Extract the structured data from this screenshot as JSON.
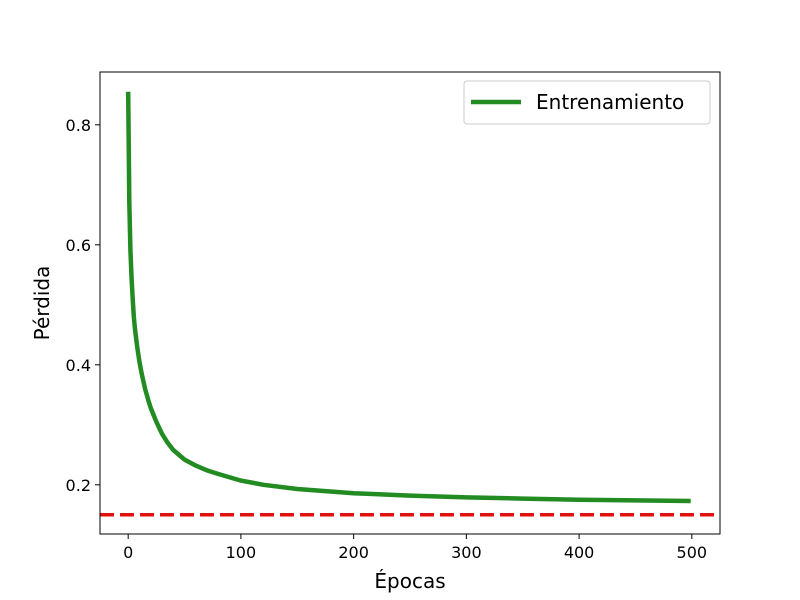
{
  "chart_data": {
    "type": "line",
    "title": "",
    "xlabel": "Épocas",
    "ylabel": "Pérdida",
    "xlim": [
      -25,
      525
    ],
    "ylim": [
      0.118,
      0.888
    ],
    "xticks": [
      0,
      100,
      200,
      300,
      400,
      500
    ],
    "xtick_labels": [
      "0",
      "100",
      "200",
      "300",
      "400",
      "500"
    ],
    "yticks": [
      0.2,
      0.4,
      0.6,
      0.8
    ],
    "ytick_labels": [
      "0.2",
      "0.4",
      "0.6",
      "0.8"
    ],
    "grid": false,
    "legend": {
      "position": "top-right"
    },
    "series": [
      {
        "name": "Entrenamiento",
        "color": "#228b22",
        "style": "solid",
        "x": [
          0,
          1,
          2,
          3,
          4,
          5,
          6,
          8,
          10,
          12,
          15,
          18,
          20,
          25,
          30,
          35,
          40,
          50,
          60,
          70,
          80,
          100,
          120,
          150,
          200,
          250,
          300,
          350,
          400,
          450,
          499
        ],
        "y": [
          0.855,
          0.67,
          0.59,
          0.545,
          0.51,
          0.48,
          0.46,
          0.43,
          0.405,
          0.385,
          0.36,
          0.34,
          0.328,
          0.305,
          0.285,
          0.27,
          0.258,
          0.242,
          0.232,
          0.224,
          0.218,
          0.207,
          0.2,
          0.193,
          0.186,
          0.182,
          0.179,
          0.177,
          0.175,
          0.174,
          0.173
        ]
      }
    ],
    "reference_line": {
      "orientation": "horizontal",
      "y": 0.15,
      "color": "#e0120f",
      "style": "dashed"
    }
  }
}
